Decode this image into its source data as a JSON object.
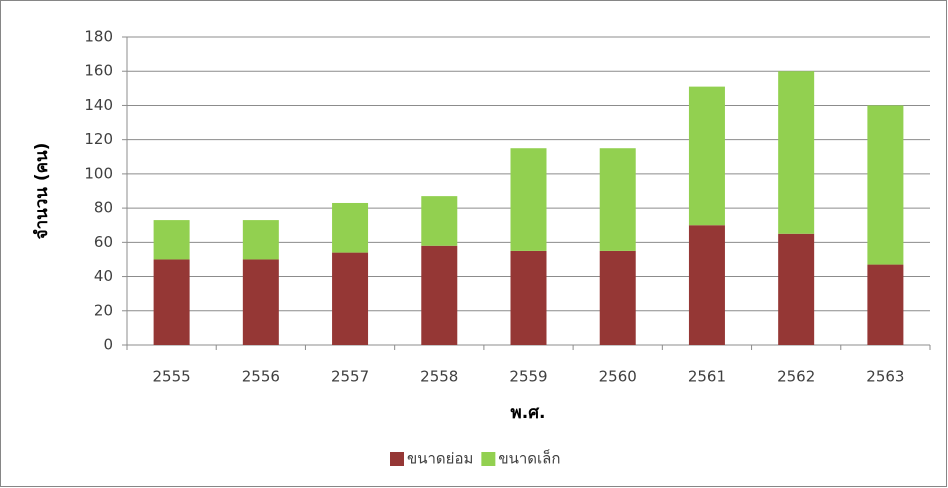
{
  "chart_data": {
    "type": "stacked_bar",
    "x_label": "พ.ศ.",
    "y_label": "จำนวน (คน)",
    "categories": [
      "2555",
      "2556",
      "2557",
      "2558",
      "2559",
      "2560",
      "2561",
      "2562",
      "2563"
    ],
    "series": [
      {
        "name": "ขนาดย่อม",
        "color": "#953735",
        "values": [
          50,
          50,
          54,
          58,
          55,
          55,
          70,
          65,
          47
        ]
      },
      {
        "name": "ขนาดเล็ก",
        "color": "#92d050",
        "values": [
          23,
          23,
          29,
          29,
          60,
          60,
          81,
          95,
          93
        ]
      }
    ],
    "ylim": [
      0,
      180
    ],
    "yticks": [
      0,
      20,
      40,
      60,
      80,
      100,
      120,
      140,
      160,
      180
    ],
    "grid": true,
    "legend": "bottom"
  }
}
